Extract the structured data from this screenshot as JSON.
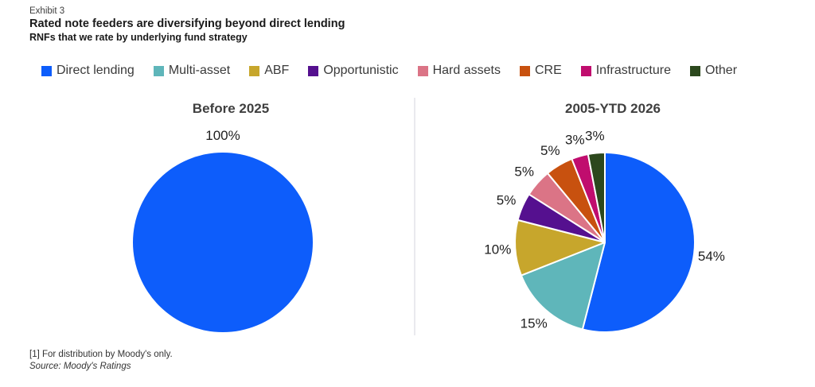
{
  "header": {
    "exhibit": "Exhibit 3",
    "title": "Rated note feeders are diversifying beyond direct lending",
    "subtitle": "RNFs that we rate by underlying fund strategy"
  },
  "legend": [
    {
      "label": "Direct lending",
      "color": "#0D5DFB"
    },
    {
      "label": "Multi-asset",
      "color": "#5FB6BA"
    },
    {
      "label": "ABF",
      "color": "#C7A62C"
    },
    {
      "label": "Opportunistic",
      "color": "#55108F"
    },
    {
      "label": "Hard assets",
      "color": "#DB7486"
    },
    {
      "label": "CRE",
      "color": "#C8510F"
    },
    {
      "label": "Infrastructure",
      "color": "#C00D6E"
    },
    {
      "label": "Other",
      "color": "#2C481D"
    }
  ],
  "chart_data": [
    {
      "type": "pie",
      "title": "Before 2025",
      "labels": [
        "Direct lending"
      ],
      "values": [
        100
      ],
      "value_labels": [
        "100%"
      ],
      "colors": [
        "#0D5DFB"
      ],
      "start_angle": 0,
      "direction": "clockwise",
      "label_position": "top"
    },
    {
      "type": "pie",
      "title": "2005-YTD 2026",
      "labels": [
        "Direct lending",
        "Multi-asset",
        "ABF",
        "Opportunistic",
        "Hard assets",
        "CRE",
        "Infrastructure",
        "Other"
      ],
      "values": [
        54,
        15,
        10,
        5,
        5,
        5,
        3,
        3
      ],
      "value_labels": [
        "54%",
        "15%",
        "10%",
        "5%",
        "5%",
        "5%",
        "3%",
        "3%"
      ],
      "colors": [
        "#0D5DFB",
        "#5FB6BA",
        "#C7A62C",
        "#55108F",
        "#DB7486",
        "#C8510F",
        "#C00D6E",
        "#2C481D"
      ],
      "start_angle": 0,
      "direction": "clockwise",
      "label_position": "outside"
    }
  ],
  "footnote": "[1] For distribution by Moody's only.",
  "source": "Source: Moody's Ratings"
}
